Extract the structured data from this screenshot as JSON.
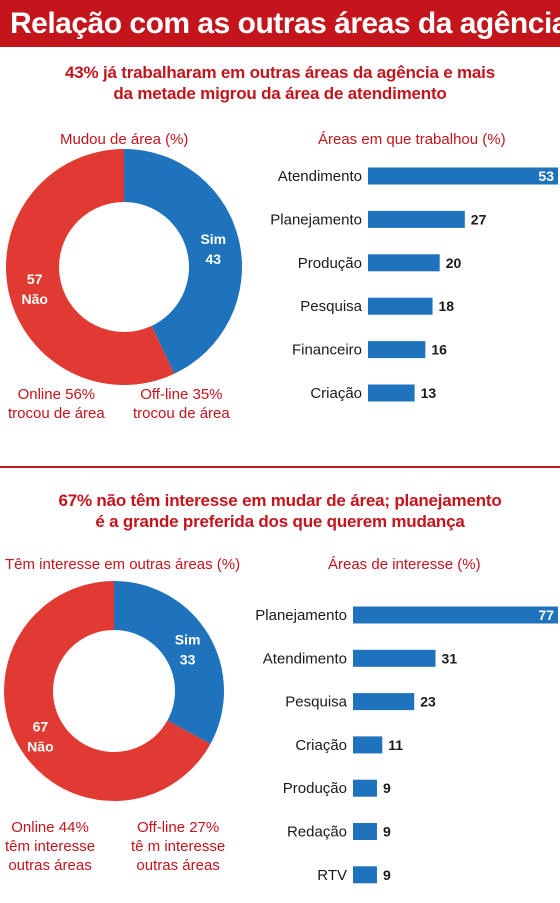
{
  "title": "Relação com as outras áreas da agência",
  "colors": {
    "red": "#e03a32",
    "blue": "#1f72bc",
    "accent": "#c4141c"
  },
  "section1": {
    "headline": [
      "43% já trabalharam em outras áreas da agência e mais",
      "da metade migrou da área de atendimento"
    ],
    "donut_subtitle": "Mudou de área (%)",
    "bar_subtitle": "Áreas em que trabalhou (%)",
    "notes": {
      "left": [
        "Online 56%",
        "trocou de área"
      ],
      "right": [
        "Off-line 35%",
        "trocou de área"
      ]
    }
  },
  "section2": {
    "headline": [
      "67% não têm interesse em mudar de área; planejamento",
      "é a grande preferida dos que querem mudança"
    ],
    "donut_subtitle": "Têm interesse em outras áreas (%)",
    "bar_subtitle": "Áreas de interesse (%)",
    "notes": {
      "left": [
        "Online 44%",
        "têm interesse",
        "outras áreas"
      ],
      "right": [
        "Off-line 27%",
        "tê m interesse",
        "outras áreas"
      ]
    }
  },
  "chart_data": [
    {
      "type": "pie",
      "title": "Mudou de área (%)",
      "categories": [
        "Não",
        "Sim"
      ],
      "values": [
        57,
        43
      ],
      "colors": [
        "#e03a32",
        "#1f72bc"
      ]
    },
    {
      "type": "bar",
      "orientation": "horizontal",
      "title": "Áreas em que trabalhou (%)",
      "categories": [
        "Atendimento",
        "Planejamento",
        "Produção",
        "Pesquisa",
        "Financeiro",
        "Criação"
      ],
      "values": [
        53,
        27,
        20,
        18,
        16,
        13
      ],
      "color": "#1f72bc"
    },
    {
      "type": "pie",
      "title": "Têm interesse em outras áreas (%)",
      "categories": [
        "Não",
        "Sim"
      ],
      "values": [
        67,
        33
      ],
      "colors": [
        "#e03a32",
        "#1f72bc"
      ]
    },
    {
      "type": "bar",
      "orientation": "horizontal",
      "title": "Áreas de interesse (%)",
      "categories": [
        "Planejamento",
        "Atendimento",
        "Pesquisa",
        "Criação",
        "Produção",
        "Redação",
        "RTV"
      ],
      "values": [
        77,
        31,
        23,
        11,
        9,
        9,
        9
      ],
      "color": "#1f72bc"
    }
  ]
}
